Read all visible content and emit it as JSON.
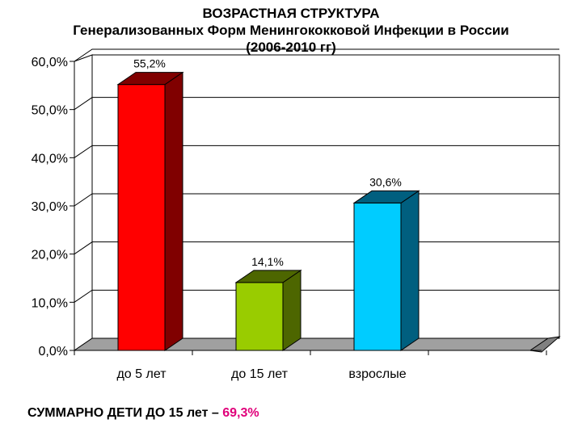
{
  "chart_data": {
    "type": "bar",
    "title": "ВОЗРАСТНАЯ СТРУКТУРА",
    "subtitle": "Генерализованных Форм Менингококковой Инфекции в России",
    "subtitle2": "(2006-2010 гг)",
    "categories": [
      "до 5 лет",
      "до 15 лет",
      "взрослые"
    ],
    "values": [
      55.2,
      14.1,
      30.6
    ],
    "data_labels": [
      "55,2%",
      "14,1%",
      "30,6%"
    ],
    "colors": [
      "#ff0000",
      "#99cc00",
      "#00ccff"
    ],
    "side_colors": [
      "#800000",
      "#4d6600",
      "#005f7f"
    ],
    "ylim": [
      0,
      60
    ],
    "yticks": [
      "0,0%",
      "10,0%",
      "20,0%",
      "30,0%",
      "40,0%",
      "50,0%",
      "60,0%"
    ],
    "grid": true,
    "legend": "none",
    "xlabel": "",
    "ylabel": ""
  },
  "summary": {
    "text": "СУММАРНО ДЕТИ ДО 15 лет – ",
    "value": "69,3%",
    "value_color": "#e0007a"
  }
}
